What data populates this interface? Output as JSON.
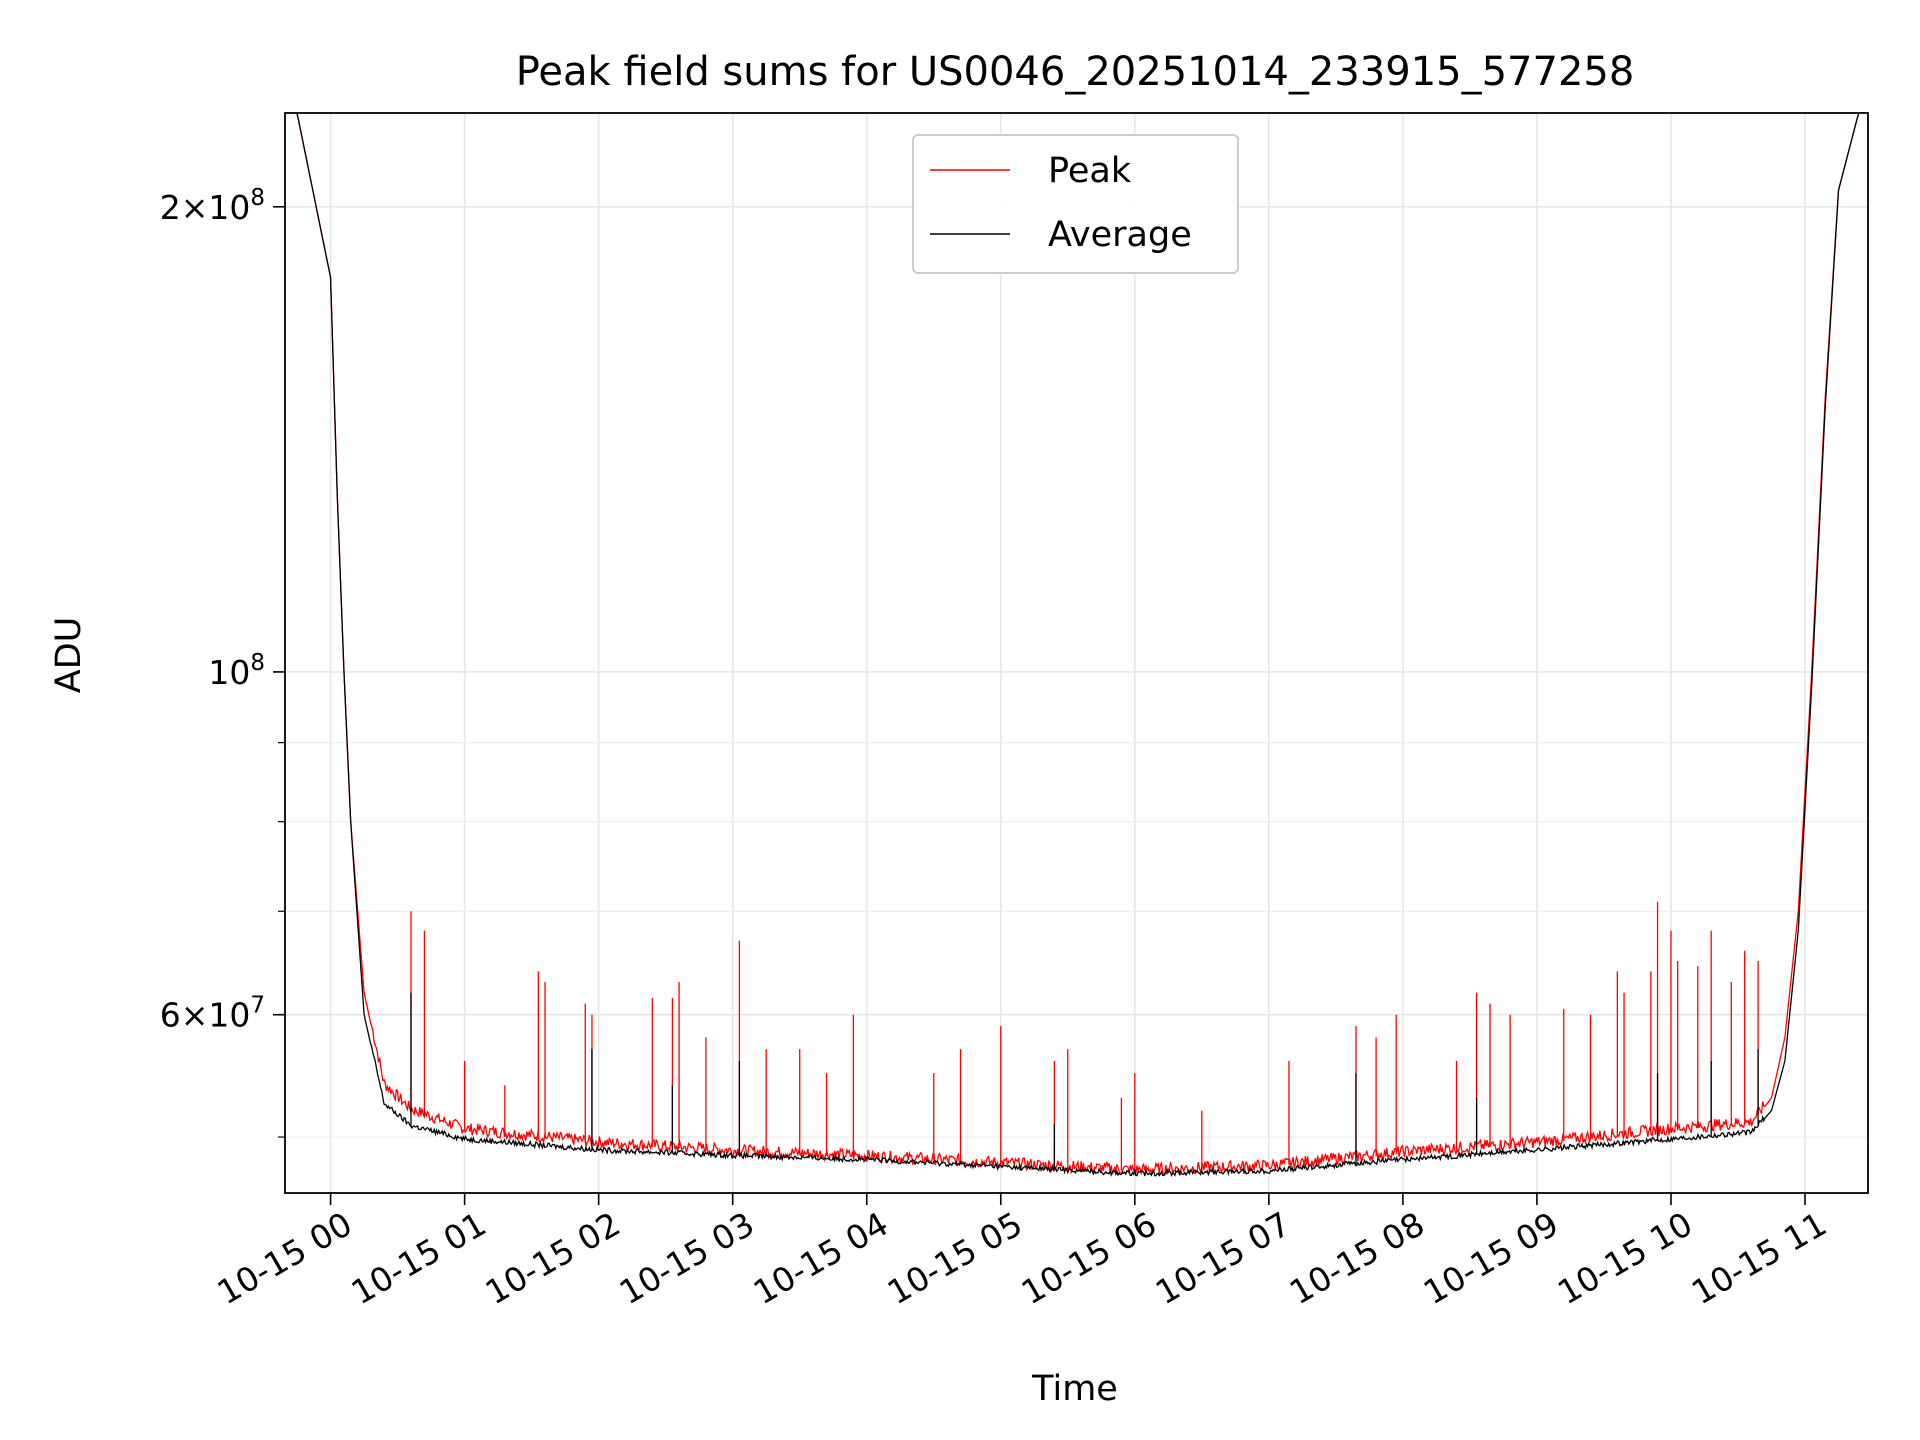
{
  "chart_data": {
    "type": "line",
    "title": "Peak field sums for US0046_20251014_233915_577258",
    "xlabel": "Time",
    "ylabel": "ADU",
    "yscale": "log",
    "xlim_hours": [
      -0.34,
      11.47
    ],
    "ylim": [
      46000000,
      230000000
    ],
    "grid": true,
    "legend_position": "upper center",
    "x_ticks": [
      {
        "value": 0,
        "label": "10-15 00"
      },
      {
        "value": 1,
        "label": "10-15 01"
      },
      {
        "value": 2,
        "label": "10-15 02"
      },
      {
        "value": 3,
        "label": "10-15 03"
      },
      {
        "value": 4,
        "label": "10-15 04"
      },
      {
        "value": 5,
        "label": "10-15 05"
      },
      {
        "value": 6,
        "label": "10-15 06"
      },
      {
        "value": 7,
        "label": "10-15 07"
      },
      {
        "value": 8,
        "label": "10-15 08"
      },
      {
        "value": 9,
        "label": "10-15 09"
      },
      {
        "value": 10,
        "label": "10-15 10"
      },
      {
        "value": 11,
        "label": "10-15 11"
      }
    ],
    "y_major_ticks": [
      {
        "value": 200000000,
        "mantissa": "2",
        "base": "10",
        "exp": "8"
      },
      {
        "value": 100000000,
        "mantissa": "",
        "base": "10",
        "exp": "8"
      },
      {
        "value": 60000000,
        "mantissa": "6",
        "base": "10",
        "exp": "7"
      }
    ],
    "y_minor_ticks": [
      50000000,
      70000000,
      80000000,
      90000000
    ],
    "series": [
      {
        "name": "Peak",
        "color": "#ff0000",
        "baseline_hours": [
          -0.25,
          0.0,
          0.05,
          0.1,
          0.15,
          0.25,
          0.4,
          0.6,
          1.0,
          2.0,
          3.0,
          4.0,
          5.0,
          6.0,
          7.0,
          8.0,
          9.0,
          10.0,
          10.6,
          10.75,
          10.85,
          10.95,
          11.05,
          11.15,
          11.25,
          11.4
        ],
        "baseline_values": [
          230000000,
          180000000,
          130000000,
          100000000,
          80000000,
          62000000,
          54000000,
          52000000,
          50500000,
          49500000,
          48900000,
          48500000,
          48000000,
          47500000,
          47800000,
          48800000,
          49500000,
          50500000,
          51000000,
          53000000,
          58000000,
          70000000,
          100000000,
          150000000,
          205000000,
          230000000
        ],
        "spike_hours": [
          0.6,
          0.7,
          1.0,
          1.3,
          1.55,
          1.6,
          1.9,
          1.95,
          2.4,
          2.55,
          2.6,
          2.8,
          3.05,
          3.25,
          3.5,
          3.7,
          3.9,
          4.5,
          4.7,
          5.0,
          5.4,
          5.5,
          5.9,
          6.0,
          6.5,
          7.15,
          7.65,
          7.8,
          7.95,
          8.4,
          8.55,
          8.65,
          8.8,
          9.2,
          9.4,
          9.6,
          9.65,
          9.85,
          9.9,
          10.0,
          10.05,
          10.2,
          10.3,
          10.45,
          10.55,
          10.65
        ],
        "spike_values": [
          70000000,
          68000000,
          56000000,
          54000000,
          64000000,
          63000000,
          61000000,
          60000000,
          61500000,
          61500000,
          63000000,
          58000000,
          67000000,
          57000000,
          57000000,
          55000000,
          60000000,
          55000000,
          57000000,
          59000000,
          56000000,
          57000000,
          53000000,
          55000000,
          52000000,
          56000000,
          59000000,
          58000000,
          60000000,
          56000000,
          62000000,
          61000000,
          60000000,
          60500000,
          60000000,
          64000000,
          62000000,
          64000000,
          71000000,
          68000000,
          65000000,
          64500000,
          68000000,
          63000000,
          66000000,
          65000000
        ]
      },
      {
        "name": "Average",
        "color": "#000000",
        "baseline_hours": [
          -0.25,
          0.0,
          0.05,
          0.1,
          0.15,
          0.25,
          0.4,
          0.6,
          1.0,
          2.0,
          3.0,
          4.0,
          5.0,
          6.0,
          7.0,
          8.0,
          9.0,
          10.0,
          10.6,
          10.75,
          10.85,
          10.95,
          11.05,
          11.15,
          11.25,
          11.4
        ],
        "baseline_values": [
          230000000,
          180000000,
          130000000,
          100000000,
          80000000,
          60000000,
          52500000,
          50800000,
          49800000,
          49000000,
          48600000,
          48300000,
          47800000,
          47300000,
          47500000,
          48300000,
          49000000,
          49800000,
          50300000,
          52000000,
          56000000,
          68000000,
          98000000,
          148000000,
          205000000,
          230000000
        ],
        "spike_hours": [
          0.6,
          1.95,
          2.55,
          3.05,
          5.4,
          7.65,
          8.55,
          9.9,
          10.3,
          10.65
        ],
        "spike_values": [
          62000000,
          57000000,
          54000000,
          56000000,
          51000000,
          55000000,
          53000000,
          55000000,
          56000000,
          57000000
        ]
      }
    ]
  }
}
